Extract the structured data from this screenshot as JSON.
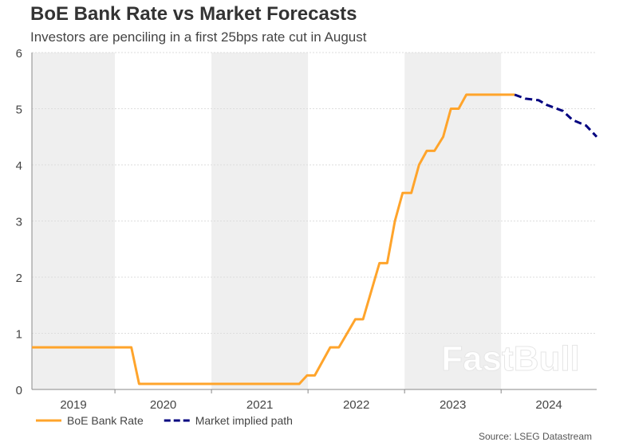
{
  "chart_data": {
    "type": "line",
    "title": "BoE Bank Rate vs Market Forecasts",
    "subtitle": "Investors are penciling in a first 25bps rate cut in August",
    "source": "Source: LSEG Datastream",
    "watermark": "FastBull",
    "xlabel": "",
    "ylabel": "",
    "xlim": [
      2019.14,
      2024.99
    ],
    "ylim": [
      0,
      6
    ],
    "yticks": [
      0,
      1,
      2,
      3,
      4,
      5,
      6
    ],
    "xtick_labels": [
      "2019",
      "2020",
      "2021",
      "2022",
      "2023",
      "2024"
    ],
    "grid": true,
    "legend_position": "bottom-left",
    "colors": {
      "bank_rate": "#FFA42B",
      "market": "#00007F",
      "band": "#EFEFEF"
    },
    "series": [
      {
        "name": "BoE Bank Rate",
        "style": "solid",
        "x": [
          2019.14,
          2020.17,
          2020.25,
          2021.91,
          2021.99,
          2022.07,
          2022.23,
          2022.32,
          2022.49,
          2022.57,
          2022.74,
          2022.82,
          2022.9,
          2022.98,
          2023.07,
          2023.15,
          2023.23,
          2023.31,
          2023.4,
          2023.48,
          2023.56,
          2023.64,
          2024.14
        ],
        "y": [
          0.75,
          0.75,
          0.1,
          0.1,
          0.25,
          0.25,
          0.75,
          0.75,
          1.25,
          1.25,
          2.25,
          2.25,
          3.0,
          3.5,
          3.5,
          4.0,
          4.25,
          4.25,
          4.5,
          5.0,
          5.0,
          5.25,
          5.25
        ]
      },
      {
        "name": "Market implied path",
        "style": "dashed",
        "x": [
          2024.14,
          2024.25,
          2024.39,
          2024.47,
          2024.64,
          2024.74,
          2024.88,
          2024.99
        ],
        "y": [
          5.25,
          5.18,
          5.15,
          5.07,
          4.96,
          4.8,
          4.7,
          4.5
        ]
      }
    ]
  }
}
